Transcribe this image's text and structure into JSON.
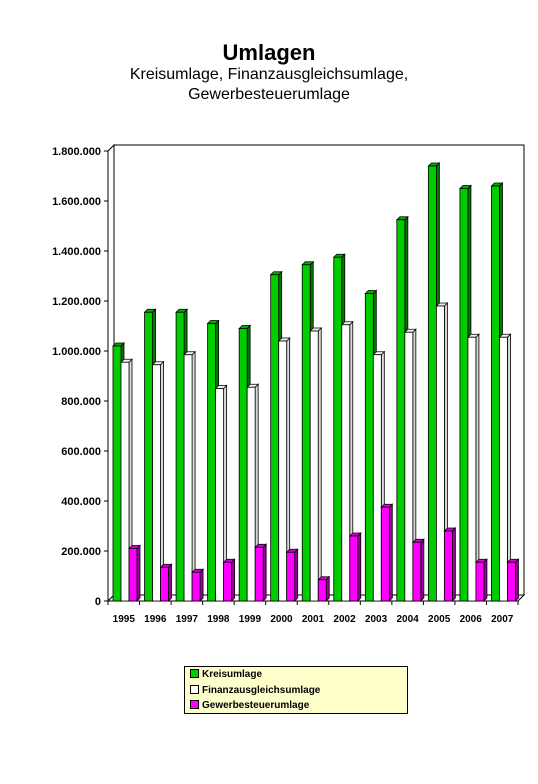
{
  "chart_data": {
    "type": "bar",
    "title": "Umlagen",
    "subtitle_lines": [
      "Kreisumlage, Finanzausgleichsumlage,",
      "Gewerbesteuerumlage"
    ],
    "categories": [
      "1995",
      "1996",
      "1997",
      "1998",
      "1999",
      "2000",
      "2001",
      "2002",
      "2003",
      "2004",
      "2005",
      "2006",
      "2007"
    ],
    "series": [
      {
        "name": "Kreisumlage",
        "color": "#00cc00",
        "values": [
          1020000,
          1155000,
          1155000,
          1110000,
          1090000,
          1305000,
          1345000,
          1375000,
          1230000,
          1525000,
          1740000,
          1650000,
          1660000
        ]
      },
      {
        "name": "Finanzausgleichsumlage",
        "color": "#ffffff",
        "values": [
          955000,
          945000,
          985000,
          850000,
          855000,
          1040000,
          1080000,
          1105000,
          985000,
          1075000,
          1180000,
          1055000,
          1055000
        ]
      },
      {
        "name": "Gewerbesteuerumlage",
        "color": "#ff00ff",
        "values": [
          210000,
          135000,
          115000,
          155000,
          215000,
          195000,
          85000,
          260000,
          375000,
          235000,
          280000,
          155000,
          155000
        ]
      }
    ],
    "y_ticks": [
      "0",
      "200.000",
      "400.000",
      "600.000",
      "800.000",
      "1.000.000",
      "1.200.000",
      "1.400.000",
      "1.600.000",
      "1.800.000"
    ],
    "ylim": [
      0,
      1800000
    ],
    "grid": false,
    "style": "3d-clustered-bar",
    "legend_position": "bottom"
  }
}
